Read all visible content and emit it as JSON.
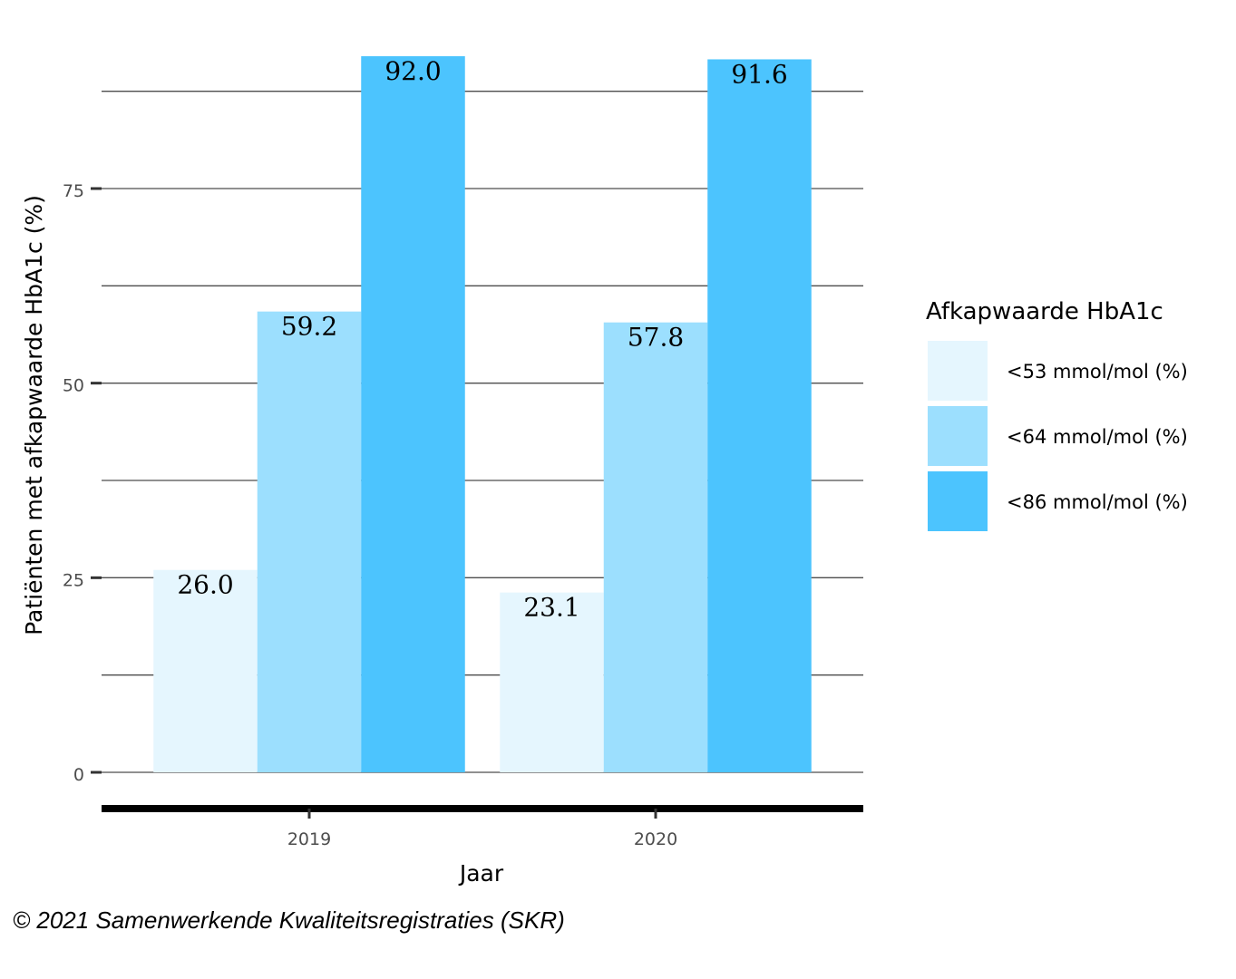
{
  "chart_data": {
    "type": "bar",
    "categories": [
      "2019",
      "2020"
    ],
    "series": [
      {
        "name": "<53 mmol/mol (%)",
        "values": [
          26.0,
          23.1
        ],
        "labels": [
          "26.0",
          "23.1"
        ],
        "color": "#e5f6fe"
      },
      {
        "name": "<64 mmol/mol (%)",
        "values": [
          59.2,
          57.8
        ],
        "labels": [
          "59.2",
          "57.8"
        ],
        "color": "#9cdffe"
      },
      {
        "name": "<86 mmol/mol (%)",
        "values": [
          92.0,
          91.6
        ],
        "labels": [
          "92.0",
          "91.6"
        ],
        "color": "#4cc4fe"
      }
    ],
    "xlabel": "Jaar",
    "ylabel": "Patiënten met afkapwaarde HbA1c (%)",
    "ylim": [
      0,
      92
    ],
    "yticks": [
      0,
      25,
      50,
      75
    ],
    "ytick_labels": [
      "0",
      "25",
      "50",
      "75"
    ],
    "grid": true,
    "legend": {
      "title": "Afkapwaarde HbA1c",
      "placement": "right"
    }
  },
  "caption": "© 2021 Samenwerkende Kwaliteitsregistraties (SKR)"
}
